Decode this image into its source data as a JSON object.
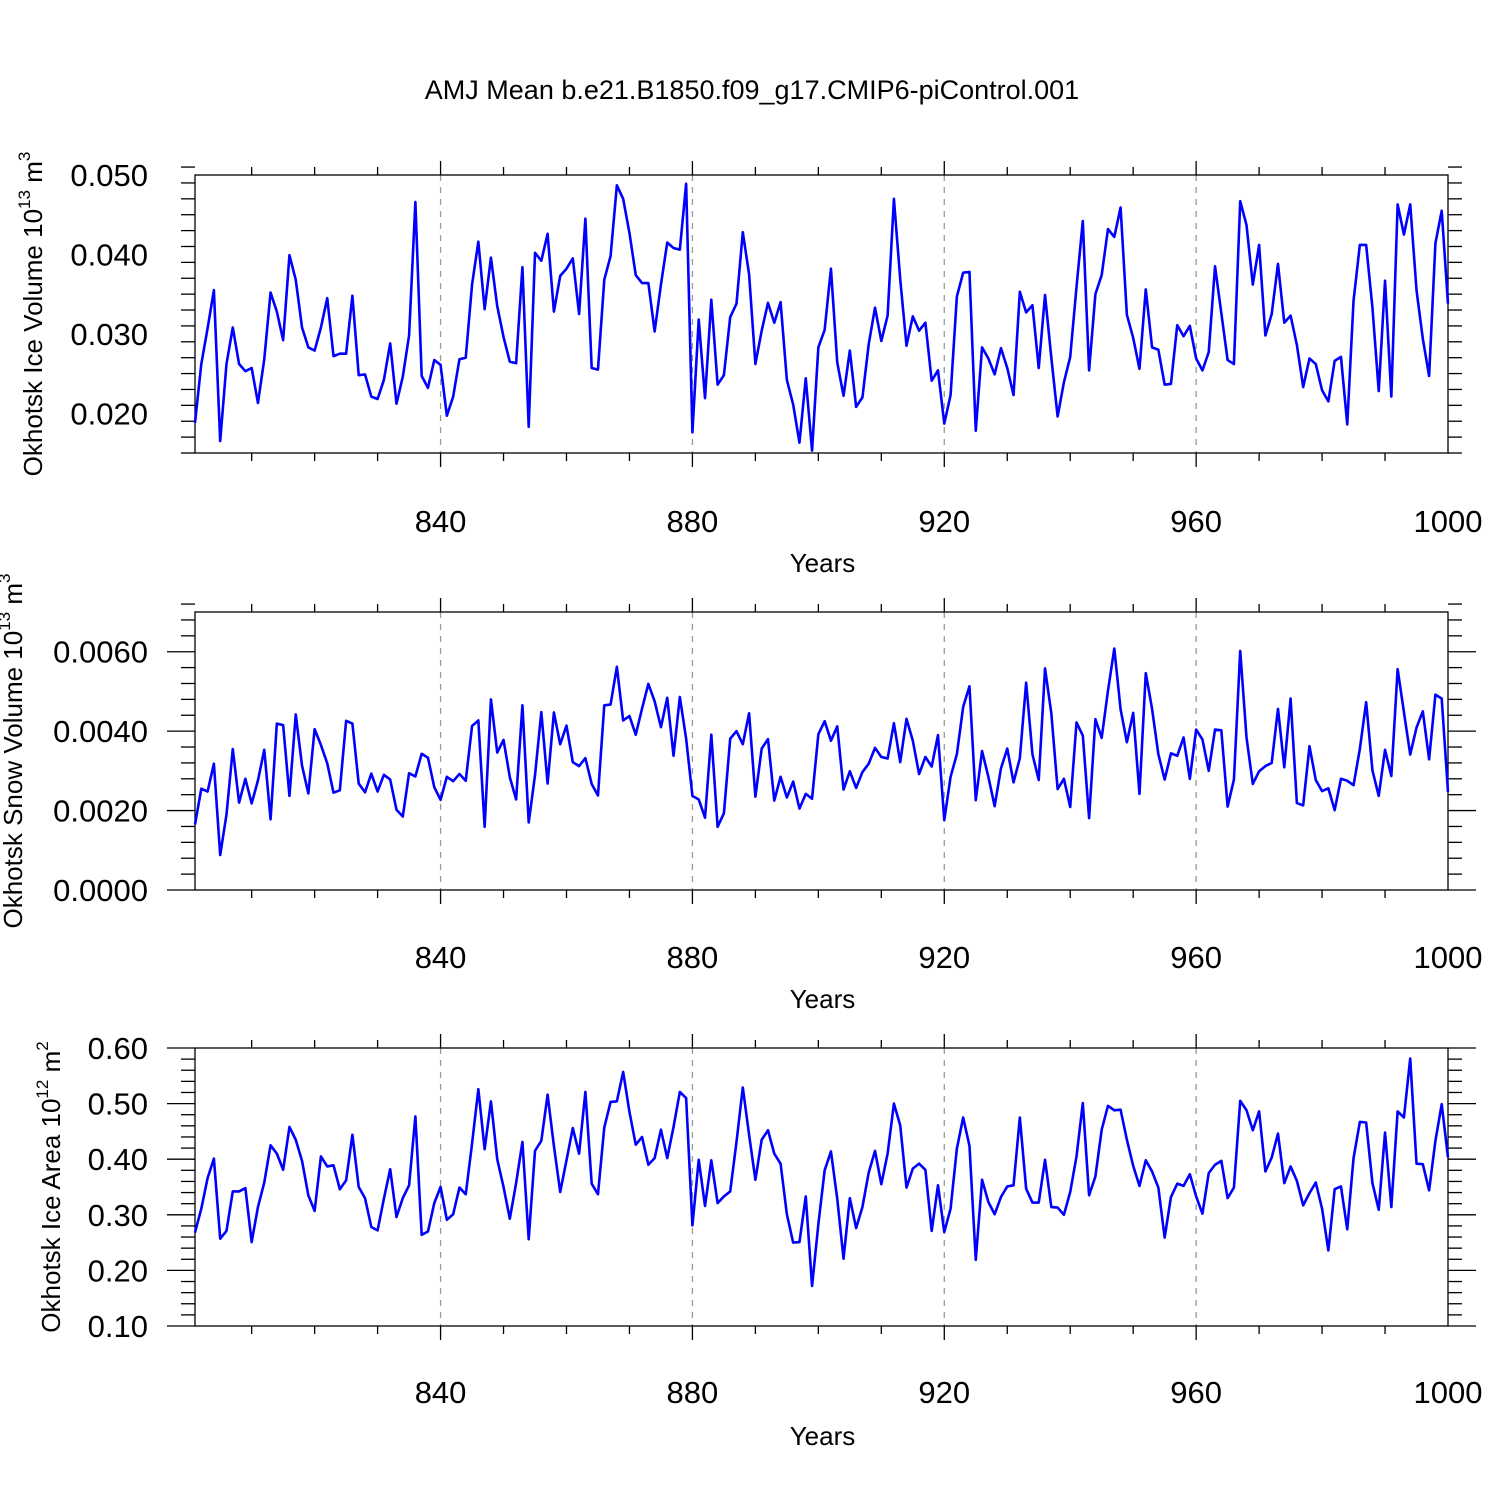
{
  "title": "AMJ Mean b.e21.B1850.f09_g17.CMIP6-piControl.001",
  "colors": {
    "line": "#0000ff",
    "axis": "#000000",
    "grid": "#999999"
  },
  "chart_data": [
    {
      "type": "line",
      "xlabel": "Years",
      "ylabel_prefix": "Okhotsk Ice Volume 10",
      "ylabel_exp": "13",
      "ylabel_unit": " m",
      "ylabel_unit_exp": "3",
      "xlim": [
        801,
        1000
      ],
      "ylim": [
        0.015,
        0.05
      ],
      "yticks": [
        0.02,
        0.03,
        0.04,
        0.05
      ],
      "ytick_labels": [
        "0.020",
        "0.030",
        "0.040",
        "0.050"
      ],
      "xticks": [
        840,
        880,
        920,
        960,
        1000
      ],
      "xtick_labels": [
        "840",
        "880",
        "920",
        "960",
        "1000"
      ],
      "x_start": 801,
      "values": [
        0.0188,
        0.0262,
        0.0307,
        0.0355,
        0.0165,
        0.0262,
        0.0308,
        0.0262,
        0.0253,
        0.0257,
        0.0213,
        0.0268,
        0.0352,
        0.0328,
        0.0292,
        0.0399,
        0.0368,
        0.0308,
        0.0283,
        0.0279,
        0.0308,
        0.0345,
        0.0272,
        0.0275,
        0.0275,
        0.0348,
        0.0248,
        0.0249,
        0.0221,
        0.0218,
        0.0242,
        0.0288,
        0.0212,
        0.0246,
        0.0298,
        0.0466,
        0.0247,
        0.0232,
        0.0267,
        0.0261,
        0.0197,
        0.0221,
        0.0268,
        0.027,
        0.0362,
        0.0416,
        0.0331,
        0.0396,
        0.0335,
        0.0296,
        0.0265,
        0.0263,
        0.0384,
        0.0183,
        0.0402,
        0.0392,
        0.0426,
        0.0328,
        0.0373,
        0.0382,
        0.0395,
        0.0325,
        0.0445,
        0.0257,
        0.0255,
        0.0368,
        0.0398,
        0.0487,
        0.047,
        0.0427,
        0.0374,
        0.0364,
        0.0364,
        0.0303,
        0.0362,
        0.0415,
        0.0408,
        0.0406,
        0.0489,
        0.0176,
        0.0318,
        0.0219,
        0.0343,
        0.0236,
        0.0248,
        0.0321,
        0.0338,
        0.0428,
        0.0375,
        0.0262,
        0.0304,
        0.0339,
        0.0314,
        0.034,
        0.0242,
        0.0211,
        0.0163,
        0.0244,
        0.0153,
        0.0283,
        0.0305,
        0.0382,
        0.0264,
        0.0222,
        0.0279,
        0.0208,
        0.022,
        0.0287,
        0.0333,
        0.0291,
        0.0323,
        0.047,
        0.0369,
        0.0285,
        0.0322,
        0.0304,
        0.0314,
        0.0241,
        0.0254,
        0.0187,
        0.0223,
        0.0347,
        0.0377,
        0.0378,
        0.0178,
        0.0283,
        0.0269,
        0.0249,
        0.0282,
        0.0257,
        0.0223,
        0.0353,
        0.0327,
        0.0336,
        0.0257,
        0.0349,
        0.027,
        0.0196,
        0.0239,
        0.0271,
        0.0359,
        0.0442,
        0.0254,
        0.035,
        0.0374,
        0.0432,
        0.0422,
        0.0459,
        0.0324,
        0.0295,
        0.0256,
        0.0356,
        0.0283,
        0.028,
        0.0236,
        0.0237,
        0.0311,
        0.0297,
        0.031,
        0.0269,
        0.0254,
        0.0277,
        0.0385,
        0.0326,
        0.0267,
        0.0262,
        0.0467,
        0.0437,
        0.0362,
        0.0412,
        0.0298,
        0.0325,
        0.0388,
        0.0314,
        0.0323,
        0.0286,
        0.0233,
        0.0269,
        0.0262,
        0.0229,
        0.0215,
        0.0266,
        0.0271,
        0.0186,
        0.0342,
        0.0412,
        0.0412,
        0.0333,
        0.0228,
        0.0367,
        0.0221,
        0.0463,
        0.0425,
        0.0463,
        0.0355,
        0.0294,
        0.0247,
        0.0414,
        0.0455,
        0.0338
      ]
    },
    {
      "type": "line",
      "xlabel": "Years",
      "ylabel_prefix": "Okhotsk Snow Volume 10",
      "ylabel_exp": "13",
      "ylabel_unit": " m",
      "ylabel_unit_exp": "3",
      "xlim": [
        801,
        1000
      ],
      "ylim": [
        0.0,
        0.007
      ],
      "yticks": [
        0.0,
        0.002,
        0.004,
        0.006
      ],
      "ytick_labels": [
        "0.0000",
        "0.0020",
        "0.0040",
        "0.0060"
      ],
      "xticks": [
        840,
        880,
        920,
        960,
        1000
      ],
      "xtick_labels": [
        "840",
        "880",
        "920",
        "960",
        "1000"
      ],
      "x_start": 801,
      "values": [
        0.00165,
        0.00255,
        0.00248,
        0.00318,
        0.00088,
        0.0019,
        0.00355,
        0.0022,
        0.0028,
        0.00218,
        0.00276,
        0.00353,
        0.00178,
        0.00419,
        0.00415,
        0.00237,
        0.00442,
        0.00313,
        0.00243,
        0.00405,
        0.00365,
        0.00319,
        0.00245,
        0.00251,
        0.00426,
        0.00419,
        0.00268,
        0.00246,
        0.00293,
        0.00248,
        0.0029,
        0.00278,
        0.00202,
        0.00185,
        0.00294,
        0.00286,
        0.00343,
        0.00333,
        0.00259,
        0.00227,
        0.00285,
        0.00274,
        0.00292,
        0.00275,
        0.00413,
        0.00427,
        0.00159,
        0.0048,
        0.00346,
        0.00378,
        0.00284,
        0.00228,
        0.00465,
        0.0017,
        0.00289,
        0.00448,
        0.00268,
        0.00447,
        0.00367,
        0.00414,
        0.00322,
        0.00312,
        0.00332,
        0.00267,
        0.00238,
        0.00465,
        0.00467,
        0.00562,
        0.00427,
        0.00438,
        0.00391,
        0.00457,
        0.00519,
        0.00475,
        0.0041,
        0.00484,
        0.00338,
        0.00486,
        0.00381,
        0.00237,
        0.00228,
        0.00182,
        0.00391,
        0.00159,
        0.00193,
        0.00381,
        0.004,
        0.00367,
        0.00445,
        0.00235,
        0.00356,
        0.0038,
        0.00225,
        0.00285,
        0.00233,
        0.00273,
        0.00205,
        0.00242,
        0.0023,
        0.00392,
        0.00425,
        0.00376,
        0.00412,
        0.00253,
        0.00299,
        0.00257,
        0.00297,
        0.00318,
        0.00358,
        0.00335,
        0.00331,
        0.0042,
        0.00322,
        0.00431,
        0.00376,
        0.00292,
        0.00335,
        0.00311,
        0.0039,
        0.00176,
        0.00285,
        0.00342,
        0.00461,
        0.00513,
        0.00226,
        0.0035,
        0.00285,
        0.00211,
        0.00306,
        0.00356,
        0.00271,
        0.00332,
        0.00522,
        0.00342,
        0.00277,
        0.00558,
        0.00445,
        0.00254,
        0.0028,
        0.00209,
        0.00422,
        0.00389,
        0.00181,
        0.0043,
        0.00383,
        0.00502,
        0.00608,
        0.00455,
        0.00372,
        0.00446,
        0.00242,
        0.00546,
        0.00456,
        0.00342,
        0.00278,
        0.00344,
        0.00338,
        0.00384,
        0.0028,
        0.00404,
        0.00379,
        0.003,
        0.00404,
        0.00402,
        0.0021,
        0.00278,
        0.00602,
        0.00384,
        0.00267,
        0.00299,
        0.00312,
        0.0032,
        0.00456,
        0.00309,
        0.00482,
        0.00219,
        0.00213,
        0.00362,
        0.00277,
        0.00249,
        0.00256,
        0.00201,
        0.0028,
        0.00275,
        0.00264,
        0.00355,
        0.00473,
        0.00301,
        0.00237,
        0.00353,
        0.00287,
        0.00556,
        0.00448,
        0.00341,
        0.00409,
        0.0045,
        0.00329,
        0.00492,
        0.00482,
        0.00247
      ]
    },
    {
      "type": "line",
      "xlabel": "Years",
      "ylabel_prefix": "Okhotsk Ice Area 10",
      "ylabel_exp": "12",
      "ylabel_unit": " m",
      "ylabel_unit_exp": "2",
      "xlim": [
        801,
        1000
      ],
      "ylim": [
        0.1,
        0.6
      ],
      "yticks": [
        0.1,
        0.2,
        0.3,
        0.4,
        0.5,
        0.6
      ],
      "ytick_labels": [
        "0.10",
        "0.20",
        "0.30",
        "0.40",
        "0.50",
        "0.60"
      ],
      "xticks": [
        840,
        880,
        920,
        960,
        1000
      ],
      "xtick_labels": [
        "840",
        "880",
        "920",
        "960",
        "1000"
      ],
      "x_start": 801,
      "values": [
        0.268,
        0.311,
        0.366,
        0.401,
        0.257,
        0.271,
        0.342,
        0.342,
        0.348,
        0.251,
        0.314,
        0.358,
        0.425,
        0.41,
        0.381,
        0.458,
        0.435,
        0.397,
        0.335,
        0.307,
        0.405,
        0.387,
        0.389,
        0.346,
        0.362,
        0.444,
        0.35,
        0.33,
        0.278,
        0.272,
        0.329,
        0.382,
        0.296,
        0.33,
        0.353,
        0.477,
        0.264,
        0.27,
        0.321,
        0.35,
        0.291,
        0.301,
        0.349,
        0.337,
        0.428,
        0.526,
        0.418,
        0.504,
        0.4,
        0.35,
        0.293,
        0.357,
        0.431,
        0.256,
        0.415,
        0.433,
        0.516,
        0.424,
        0.341,
        0.398,
        0.456,
        0.41,
        0.521,
        0.356,
        0.337,
        0.457,
        0.503,
        0.504,
        0.557,
        0.485,
        0.426,
        0.44,
        0.39,
        0.402,
        0.453,
        0.402,
        0.458,
        0.521,
        0.51,
        0.281,
        0.399,
        0.316,
        0.398,
        0.321,
        0.333,
        0.342,
        0.431,
        0.529,
        0.444,
        0.363,
        0.435,
        0.452,
        0.41,
        0.392,
        0.301,
        0.25,
        0.251,
        0.333,
        0.172,
        0.283,
        0.38,
        0.414,
        0.329,
        0.221,
        0.33,
        0.276,
        0.314,
        0.376,
        0.415,
        0.355,
        0.41,
        0.5,
        0.461,
        0.349,
        0.383,
        0.392,
        0.381,
        0.271,
        0.353,
        0.269,
        0.311,
        0.419,
        0.475,
        0.424,
        0.219,
        0.363,
        0.323,
        0.301,
        0.332,
        0.351,
        0.353,
        0.475,
        0.347,
        0.322,
        0.322,
        0.399,
        0.314,
        0.313,
        0.3,
        0.341,
        0.405,
        0.501,
        0.335,
        0.369,
        0.453,
        0.496,
        0.488,
        0.489,
        0.435,
        0.388,
        0.352,
        0.398,
        0.378,
        0.349,
        0.259,
        0.332,
        0.356,
        0.352,
        0.373,
        0.333,
        0.302,
        0.375,
        0.39,
        0.397,
        0.33,
        0.349,
        0.505,
        0.488,
        0.452,
        0.486,
        0.378,
        0.403,
        0.446,
        0.357,
        0.387,
        0.361,
        0.317,
        0.339,
        0.358,
        0.311,
        0.236,
        0.346,
        0.351,
        0.274,
        0.402,
        0.467,
        0.466,
        0.357,
        0.309,
        0.448,
        0.314,
        0.486,
        0.475,
        0.581,
        0.392,
        0.391,
        0.344,
        0.433,
        0.499,
        0.403
      ]
    }
  ]
}
